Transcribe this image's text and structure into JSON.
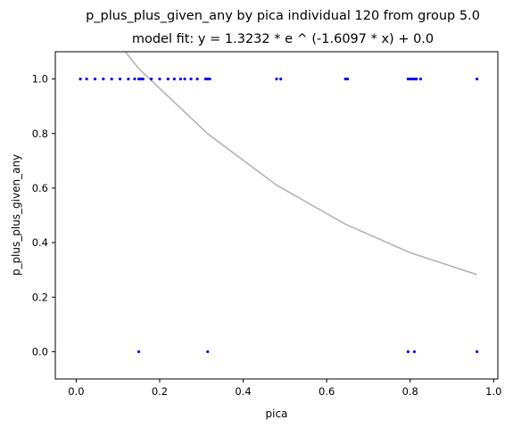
{
  "chart_data": {
    "type": "scatter",
    "title": "p_plus_plus_given_any by pica individual 120 from group 5.0",
    "subtitle": "model fit: y = 1.3232 * e ^ (-1.6097 * x) + 0.0",
    "xlabel": "pica",
    "ylabel": "p_plus_plus_given_any",
    "xlim": [
      -0.05,
      1.01
    ],
    "ylim": [
      -0.1,
      1.1
    ],
    "x_ticks": [
      "0.0",
      "0.2",
      "0.4",
      "0.6",
      "0.8",
      "1.0"
    ],
    "y_ticks": [
      "0.0",
      "0.2",
      "0.4",
      "0.6",
      "0.8",
      "1.0"
    ],
    "grid": false,
    "legend": "none",
    "colors": {
      "points": "#0000ff",
      "fit_line": "#b3b3b3",
      "axes": "#000000"
    },
    "series": [
      {
        "kind": "points",
        "x": [
          0.01,
          0.025,
          0.045,
          0.065,
          0.085,
          0.105,
          0.125,
          0.14,
          0.15,
          0.155,
          0.16,
          0.18,
          0.2,
          0.22,
          0.235,
          0.25,
          0.26,
          0.275,
          0.29,
          0.31,
          0.315,
          0.32,
          0.48,
          0.49,
          0.645,
          0.65,
          0.795,
          0.8,
          0.805,
          0.81,
          0.815,
          0.825,
          0.96,
          0.15,
          0.315,
          0.795,
          0.81,
          0.96
        ],
        "y": [
          1,
          1,
          1,
          1,
          1,
          1,
          1,
          1,
          1,
          1,
          1,
          1,
          1,
          1,
          1,
          1,
          1,
          1,
          1,
          1,
          1,
          1,
          1,
          1,
          1,
          1,
          1,
          1,
          1,
          1,
          1,
          1,
          1,
          0,
          0,
          0,
          0,
          0
        ]
      },
      {
        "kind": "fit_line",
        "x": [
          0.0,
          0.15,
          0.315,
          0.48,
          0.645,
          0.8,
          0.96
        ],
        "y": [
          1.3232,
          1.038,
          0.799,
          0.6108,
          0.4675,
          0.363,
          0.2826
        ]
      }
    ]
  }
}
